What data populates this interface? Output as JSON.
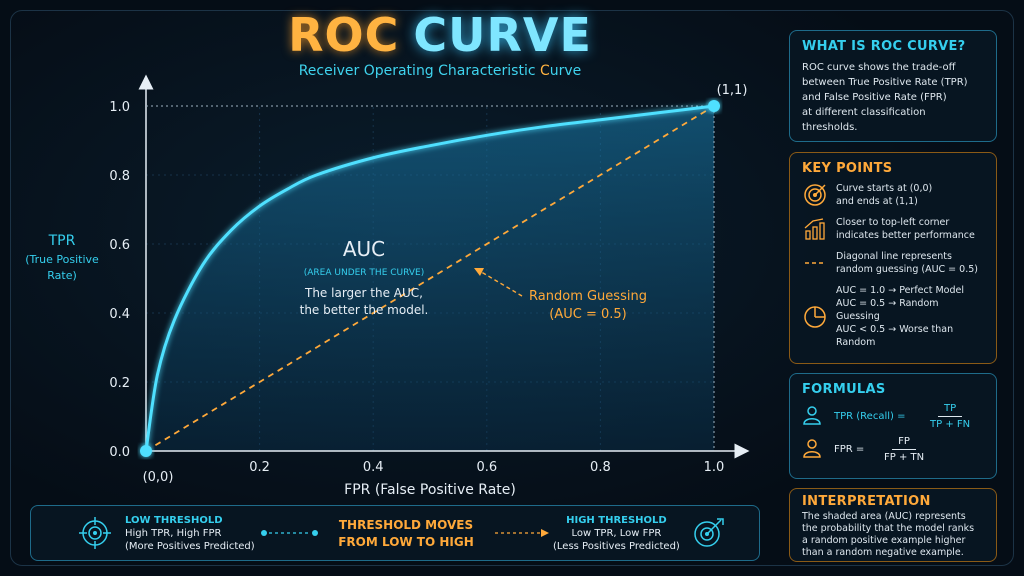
{
  "header": {
    "title_part1": "ROC",
    "title_part2": "CURVE",
    "subtitle_prefix": "Receiver Operating Characteristic ",
    "subtitle_accent": "C",
    "subtitle_suffix": "urve"
  },
  "chart_data": {
    "type": "line",
    "xlabel": "FPR (False Positive Rate)",
    "ylabel_lines": [
      "TPR",
      "(True Positive",
      "Rate)"
    ],
    "x_ticks": [
      "0.2",
      "0.4",
      "0.6",
      "0.8",
      "1.0"
    ],
    "y_ticks": [
      "1.0",
      "0.8",
      "0.6",
      "0.4",
      "0.2",
      "0.0"
    ],
    "xlim": [
      0,
      1
    ],
    "ylim": [
      0,
      1
    ],
    "series": [
      {
        "x": [
          0,
          0.02,
          0.05,
          0.1,
          0.15,
          0.2,
          0.25,
          0.3,
          0.4,
          0.5,
          0.6,
          0.7,
          0.8,
          0.9,
          1.0
        ],
        "y": [
          0,
          0.22,
          0.38,
          0.54,
          0.64,
          0.71,
          0.76,
          0.8,
          0.85,
          0.885,
          0.915,
          0.94,
          0.96,
          0.98,
          1.0
        ]
      },
      {
        "x": [
          0,
          1
        ],
        "y": [
          0,
          1
        ]
      }
    ],
    "points": [
      {
        "label": "(0,0)",
        "x": 0,
        "y": 0
      },
      {
        "label": "(1,1)",
        "x": 1,
        "y": 1
      }
    ],
    "auc_title": "AUC",
    "auc_subtitle": "(AREA UNDER THE CURVE)",
    "auc_text_1": "The larger the AUC,",
    "auc_text_2": "the better the model.",
    "random_label_1": "Random Guessing",
    "random_label_2": "(AUC = 0.5)"
  },
  "panels": {
    "what": {
      "title": "WHAT IS ROC CURVE?",
      "lines": [
        "ROC curve shows the trade-off",
        "between True Positive Rate (TPR)",
        "and False Positive Rate (FPR)",
        "at different classification",
        "thresholds."
      ]
    },
    "key": {
      "title": "KEY POINTS",
      "items": [
        {
          "icon": "target-icon",
          "lines": [
            "Curve starts at (0,0)",
            "and ends at (1,1)"
          ]
        },
        {
          "icon": "rising-chart-icon",
          "lines": [
            "Closer to top-left corner",
            "indicates better performance"
          ]
        },
        {
          "icon": "dashed-line-icon",
          "lines": [
            "Diagonal line represents",
            "random guessing (AUC = 0.5)"
          ]
        },
        {
          "icon": "pie-icon",
          "lines": [
            "AUC = 1.0 → Perfect Model",
            "AUC = 0.5 → Random Guessing",
            "AUC < 0.5 → Worse than Random"
          ]
        }
      ]
    },
    "formulas": {
      "title": "FORMULAS",
      "tpr_name": "TPR (Recall) =",
      "tpr_num": "TP",
      "tpr_den": "TP + FN",
      "fpr_name": "FPR =",
      "fpr_num": "FP",
      "fpr_den": "FP + TN"
    },
    "interp": {
      "title": "INTERPRETATION",
      "lines": [
        "The shaded area (AUC) represents",
        "the probability that the model ranks",
        "a random positive example higher",
        "than a random negative example."
      ]
    }
  },
  "bottom": {
    "low_title": "LOW THRESHOLD",
    "low_l1": "High TPR, High FPR",
    "low_l2": "(More Positives Predicted)",
    "mid_l1": "THRESHOLD MOVES",
    "mid_l2": "FROM LOW TO HIGH",
    "high_title": "HIGH THRESHOLD",
    "high_l1": "Low TPR, Low FPR",
    "high_l2": "(Less Positives Predicted)"
  },
  "colors": {
    "cyan": "#35cfee",
    "orange": "#ffa93a",
    "background": "#050d16"
  }
}
